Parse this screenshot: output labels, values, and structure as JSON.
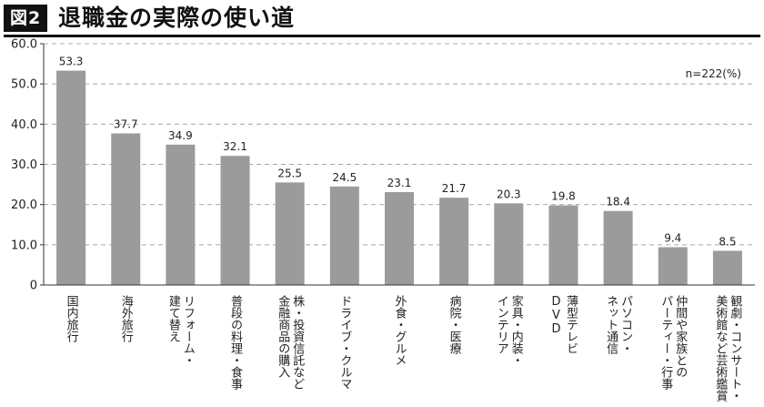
{
  "header": {
    "figure_label": "図2",
    "title": "退職金の実際の使い道"
  },
  "chart_data": {
    "type": "bar",
    "title": "退職金の実際の使い道",
    "note": "n=222(%)",
    "categories": [
      "国内旅行",
      "海外旅行",
      "リフォーム・建て替え",
      "普段の料理・食事",
      "株・投資信託など金融商品の購入",
      "ドライブ・クルマ",
      "外食・グルメ",
      "病院・医療",
      "家具・内装・インテリア",
      "薄型テレビDVD",
      "パソコン・ネット通信",
      "仲間や家族とのパーティー・行事",
      "観劇・コンサート・美術館など芸術鑑賞"
    ],
    "category_lines": [
      [
        "国内旅行"
      ],
      [
        "海外旅行"
      ],
      [
        "リフォーム・",
        "建て替え"
      ],
      [
        "普段の料理・食事"
      ],
      [
        "株・投資信託など",
        "金融商品の購入"
      ],
      [
        "ドライブ・クルマ"
      ],
      [
        "外食・グルメ"
      ],
      [
        "病院・医療"
      ],
      [
        "家具・内装・",
        "インテリア"
      ],
      [
        "薄型テレビ",
        "DVD"
      ],
      [
        "パソコン・",
        "ネット通信"
      ],
      [
        "仲間や家族との",
        "パーティー・行事"
      ],
      [
        "観劇・コンサート・",
        "美術館など芸術鑑賞"
      ]
    ],
    "values": [
      53.3,
      37.7,
      34.9,
      32.1,
      25.5,
      24.5,
      23.1,
      21.7,
      20.3,
      19.8,
      18.4,
      9.4,
      8.5
    ],
    "value_labels": [
      "53.3",
      "37.7",
      "34.9",
      "32.1",
      "25.5",
      "24.5",
      "23.1",
      "21.7",
      "20.3",
      "19.8",
      "18.4",
      "9.4",
      "8.5"
    ],
    "ylim": [
      0,
      60
    ],
    "yticks": [
      0,
      10,
      20,
      30,
      40,
      50,
      60
    ],
    "ytick_labels": [
      "0",
      "10.0",
      "20.0",
      "30.0",
      "40.0",
      "50.0",
      "60.0"
    ],
    "grid": true,
    "xlabel": "",
    "ylabel": "",
    "bar_color": "#9b9b9b"
  }
}
